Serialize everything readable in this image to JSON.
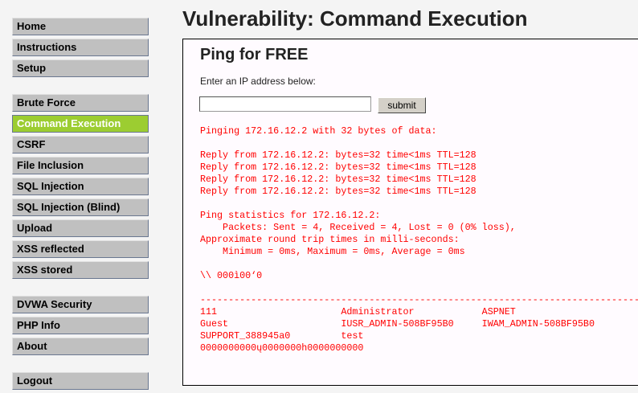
{
  "sidebar": {
    "group1": [
      "Home",
      "Instructions",
      "Setup"
    ],
    "group2": [
      "Brute Force",
      "Command Execution",
      "CSRF",
      "File Inclusion",
      "SQL Injection",
      "SQL Injection (Blind)",
      "Upload",
      "XSS reflected",
      "XSS stored"
    ],
    "group3": [
      "DVWA Security",
      "PHP Info",
      "About"
    ],
    "group4": [
      "Logout"
    ],
    "active": "Command Execution",
    "active_color": "#9ccd31"
  },
  "page": {
    "title": "Vulnerability: Command Execution",
    "heading": "Ping for FREE",
    "label": "Enter an IP address below:",
    "ip_value": "",
    "submit": "submit"
  },
  "output": {
    "color": "#ff0000",
    "lines": [
      "Pinging 172.16.12.2 with 32 bytes of data:",
      "",
      "Reply from 172.16.12.2: bytes=32 time<1ms TTL=128",
      "Reply from 172.16.12.2: bytes=32 time<1ms TTL=128",
      "Reply from 172.16.12.2: bytes=32 time<1ms TTL=128",
      "Reply from 172.16.12.2: bytes=32 time<1ms TTL=128",
      "",
      "Ping statistics for 172.16.12.2:",
      "    Packets: Sent = 4, Received = 4, Lost = 0 (0% loss),",
      "Approximate round trip times in milli-seconds:",
      "    Minimum = 0ms, Maximum = 0ms, Average = 0ms",
      "",
      "\\\\ 000ì00‘0",
      "",
      "-------------------------------------------------------------------------------",
      "111                      Administrator            ASPNET",
      "Guest                    IUSR_ADMIN-508BF95B0     IWAM_ADMIN-508BF95B0",
      "SUPPORT_388945a0         test",
      "0000000000ų0000000h0000000000"
    ]
  }
}
